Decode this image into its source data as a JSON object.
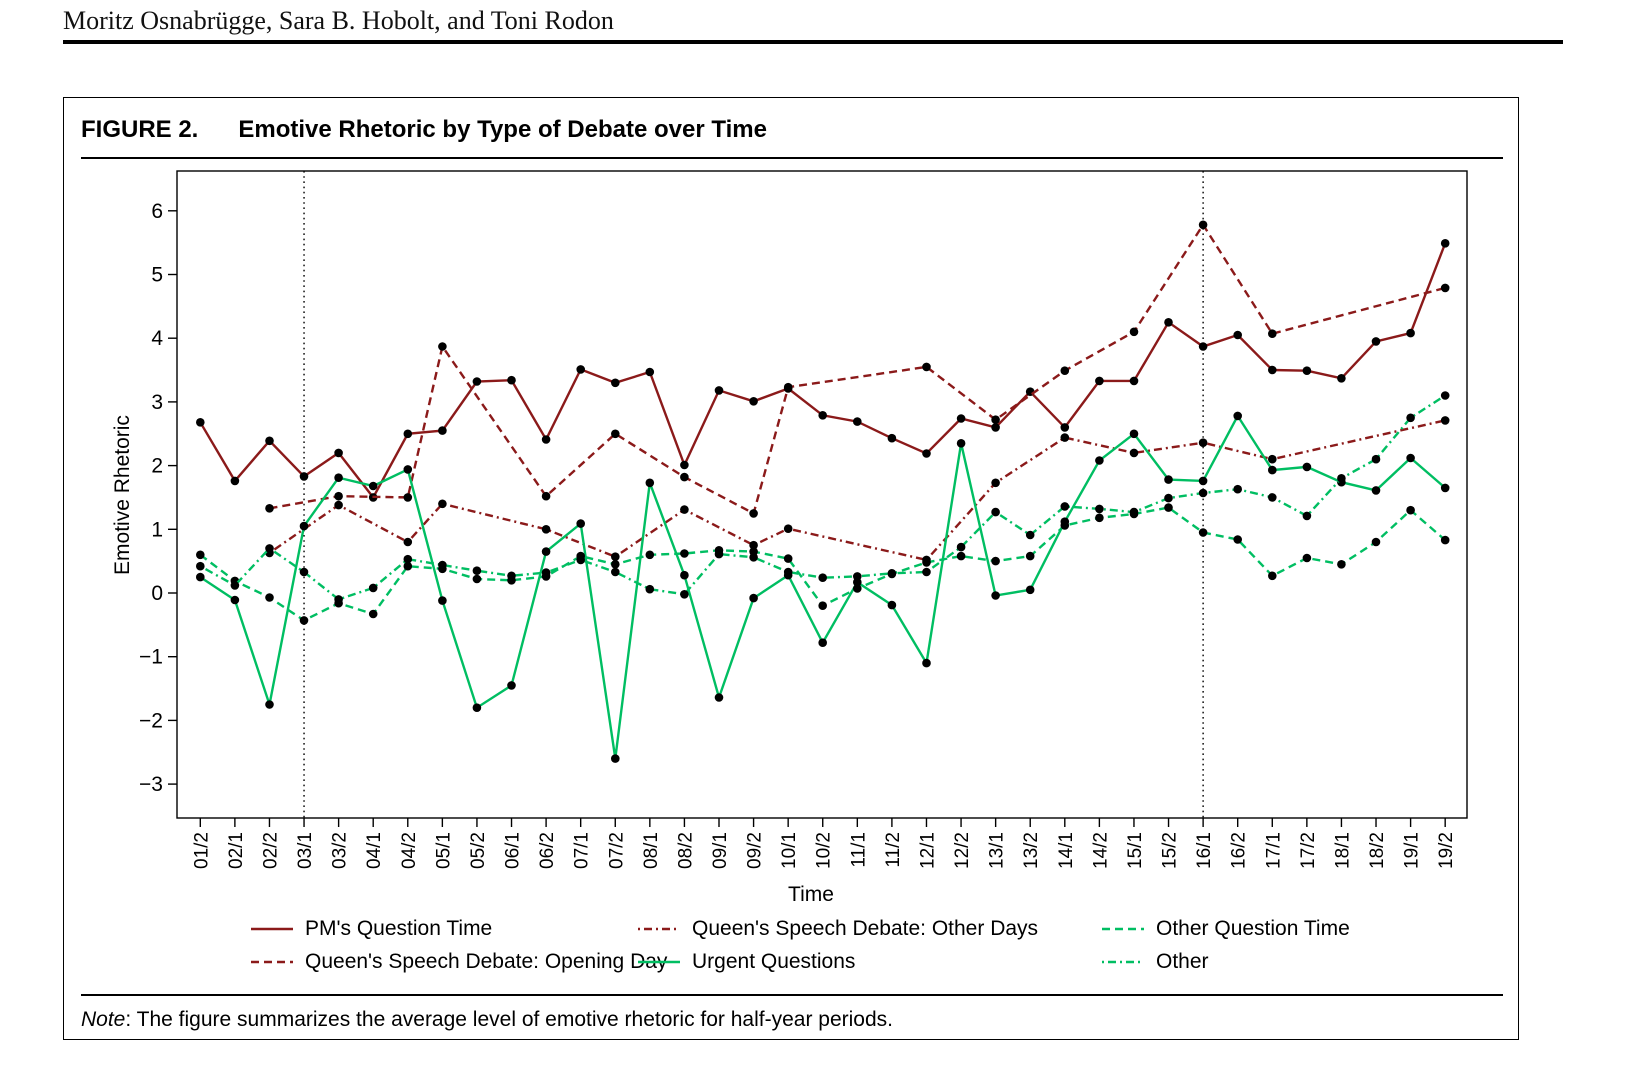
{
  "page": {
    "author_line": "Moritz Osnabrügge, Sara B. Hobolt, and Toni Rodon"
  },
  "figure": {
    "label": "FIGURE 2.",
    "title": "Emotive Rhetoric by Type of Debate over Time",
    "note_label": "Note",
    "note_body": ": The figure summarizes the average level of emotive rhetoric for half-year periods."
  },
  "chart_data": {
    "type": "line",
    "title": "Emotive Rhetoric by Type of Debate over Time",
    "xlabel": "Time",
    "ylabel": "Emotive Rhetoric",
    "ylim": [
      -3.53,
      6.62
    ],
    "yticks": [
      6,
      5,
      4,
      3,
      2,
      1,
      0,
      -1,
      -2,
      -3
    ],
    "grid": false,
    "legend_position": "bottom",
    "categories": [
      "01/2",
      "02/1",
      "02/2",
      "03/1",
      "03/2",
      "04/1",
      "04/2",
      "05/1",
      "05/2",
      "06/1",
      "06/2",
      "07/1",
      "07/2",
      "08/1",
      "08/2",
      "09/1",
      "09/2",
      "10/1",
      "10/2",
      "11/1",
      "11/2",
      "12/1",
      "12/2",
      "13/1",
      "13/2",
      "14/1",
      "14/2",
      "15/1",
      "15/2",
      "16/1",
      "16/2",
      "17/1",
      "17/2",
      "18/1",
      "18/2",
      "19/1",
      "19/2"
    ],
    "vlines": [
      "03/1",
      "16/1"
    ],
    "series": [
      {
        "name": "PM's Question Time",
        "color": "#8B1A1A",
        "style": "solid",
        "values": [
          2.68,
          1.76,
          2.39,
          1.83,
          2.2,
          1.5,
          2.5,
          2.55,
          3.32,
          3.34,
          2.41,
          3.51,
          3.3,
          3.47,
          2.01,
          3.18,
          3.01,
          3.21,
          2.79,
          2.69,
          2.43,
          2.19,
          2.74,
          2.6,
          3.16,
          2.6,
          3.33,
          3.33,
          4.25,
          3.87,
          4.05,
          3.5,
          3.49,
          3.37,
          3.95,
          4.08,
          5.49
        ]
      },
      {
        "name": "Queen's Speech Debate: Opening Day",
        "color": "#8B1A1A",
        "style": "dashed",
        "values": [
          null,
          null,
          1.33,
          null,
          1.52,
          null,
          1.5,
          3.87,
          null,
          null,
          1.52,
          null,
          2.5,
          null,
          1.82,
          null,
          1.25,
          3.23,
          null,
          null,
          null,
          3.55,
          null,
          2.72,
          null,
          3.49,
          null,
          4.1,
          null,
          5.78,
          null,
          4.07,
          null,
          null,
          null,
          null,
          4.79
        ]
      },
      {
        "name": "Queen's Speech Debate: Other Days",
        "color": "#8B1A1A",
        "style": "dashdot",
        "values": [
          null,
          null,
          0.63,
          null,
          1.38,
          null,
          0.8,
          1.4,
          null,
          null,
          1.0,
          null,
          0.57,
          null,
          1.31,
          null,
          0.75,
          1.01,
          null,
          null,
          null,
          0.52,
          null,
          1.73,
          null,
          2.44,
          null,
          2.2,
          null,
          2.36,
          null,
          2.1,
          null,
          null,
          null,
          null,
          2.71
        ]
      },
      {
        "name": "Urgent Questions",
        "color": "#00BE62",
        "style": "solid",
        "values": [
          0.25,
          -0.11,
          -1.75,
          1.05,
          1.81,
          1.68,
          1.94,
          -0.12,
          -1.8,
          -1.45,
          0.65,
          1.09,
          -2.6,
          1.73,
          0.28,
          -1.64,
          -0.08,
          0.28,
          -0.78,
          0.17,
          -0.19,
          -1.1,
          2.35,
          -0.04,
          0.05,
          1.12,
          2.08,
          2.5,
          1.78,
          1.76,
          2.78,
          1.93,
          1.98,
          1.74,
          1.61,
          2.12,
          1.65
        ]
      },
      {
        "name": "Other Question Time",
        "color": "#00BE62",
        "style": "dashed",
        "values": [
          0.6,
          0.19,
          -0.07,
          -0.43,
          -0.16,
          -0.33,
          0.42,
          0.38,
          0.22,
          0.2,
          0.26,
          0.58,
          0.45,
          0.6,
          0.62,
          0.67,
          0.65,
          0.54,
          -0.2,
          0.07,
          0.3,
          0.48,
          0.58,
          0.5,
          0.58,
          1.06,
          1.18,
          1.24,
          1.34,
          0.95,
          0.84,
          0.27,
          0.55,
          0.45,
          0.8,
          1.3,
          0.83
        ]
      },
      {
        "name": "Other",
        "color": "#00BE62",
        "style": "dashdot",
        "values": [
          0.42,
          0.12,
          0.7,
          0.33,
          -0.1,
          0.08,
          0.53,
          0.44,
          0.35,
          0.27,
          0.32,
          0.52,
          0.33,
          0.06,
          -0.02,
          0.61,
          0.56,
          0.33,
          0.24,
          0.26,
          0.31,
          0.33,
          0.72,
          1.27,
          0.91,
          1.36,
          1.32,
          1.27,
          1.49,
          1.57,
          1.63,
          1.5,
          1.21,
          1.8,
          2.1,
          2.75,
          3.1
        ]
      }
    ],
    "legend_rows": [
      [
        "PM's Question Time",
        "Queen's Speech Debate: Other Days",
        "Other Question Time"
      ],
      [
        "Queen's Speech Debate: Opening Day",
        "Urgent Questions",
        "Other"
      ]
    ]
  }
}
